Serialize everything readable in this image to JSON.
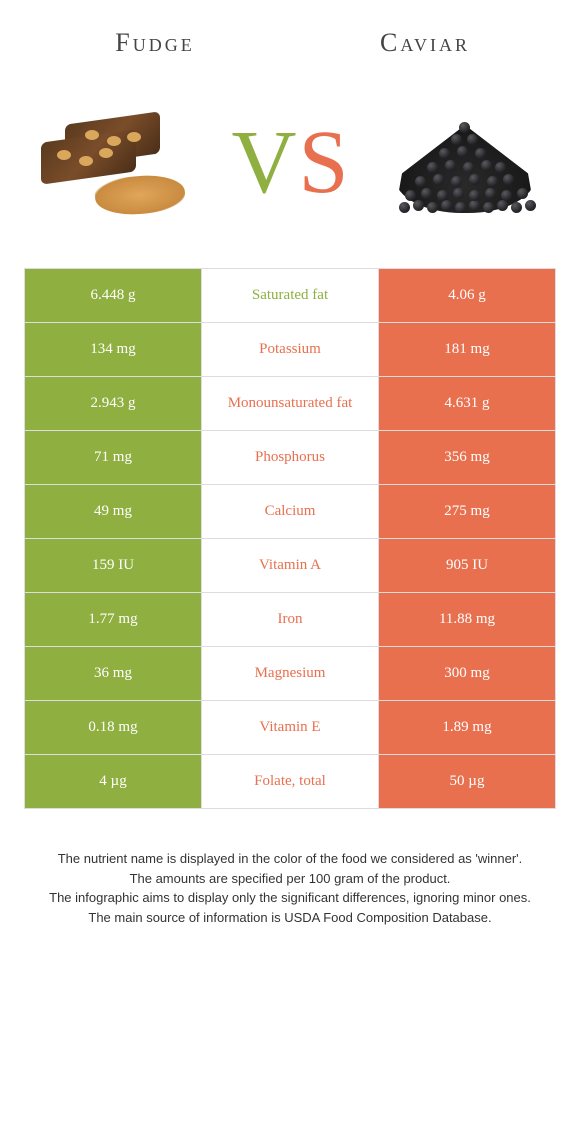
{
  "left": {
    "name": "Fudge",
    "color": "#8fb040"
  },
  "right": {
    "name": "Caviar",
    "color": "#e8704f"
  },
  "vs": {
    "v": "V",
    "s": "S"
  },
  "border_color": "#dddddd",
  "background": "#ffffff",
  "fonts": {
    "title": "Georgia",
    "body": "Arial"
  },
  "rows": [
    {
      "label": "Saturated fat",
      "left": "6.448 g",
      "right": "4.06 g",
      "winner": "left"
    },
    {
      "label": "Potassium",
      "left": "134 mg",
      "right": "181 mg",
      "winner": "right"
    },
    {
      "label": "Monounsaturated fat",
      "left": "2.943 g",
      "right": "4.631 g",
      "winner": "right"
    },
    {
      "label": "Phosphorus",
      "left": "71 mg",
      "right": "356 mg",
      "winner": "right"
    },
    {
      "label": "Calcium",
      "left": "49 mg",
      "right": "275 mg",
      "winner": "right"
    },
    {
      "label": "Vitamin A",
      "left": "159 IU",
      "right": "905 IU",
      "winner": "right"
    },
    {
      "label": "Iron",
      "left": "1.77 mg",
      "right": "11.88 mg",
      "winner": "right"
    },
    {
      "label": "Magnesium",
      "left": "36 mg",
      "right": "300 mg",
      "winner": "right"
    },
    {
      "label": "Vitamin E",
      "left": "0.18 mg",
      "right": "1.89 mg",
      "winner": "right"
    },
    {
      "label": "Folate, total",
      "left": "4 µg",
      "right": "50 µg",
      "winner": "right"
    }
  ],
  "footer": [
    "The nutrient name is displayed in the color of the food we considered as 'winner'.",
    "The amounts are specified per 100 gram of the product.",
    "The infographic aims to display only the significant differences, ignoring minor ones.",
    "The main source of information is USDA Food Composition Database."
  ]
}
